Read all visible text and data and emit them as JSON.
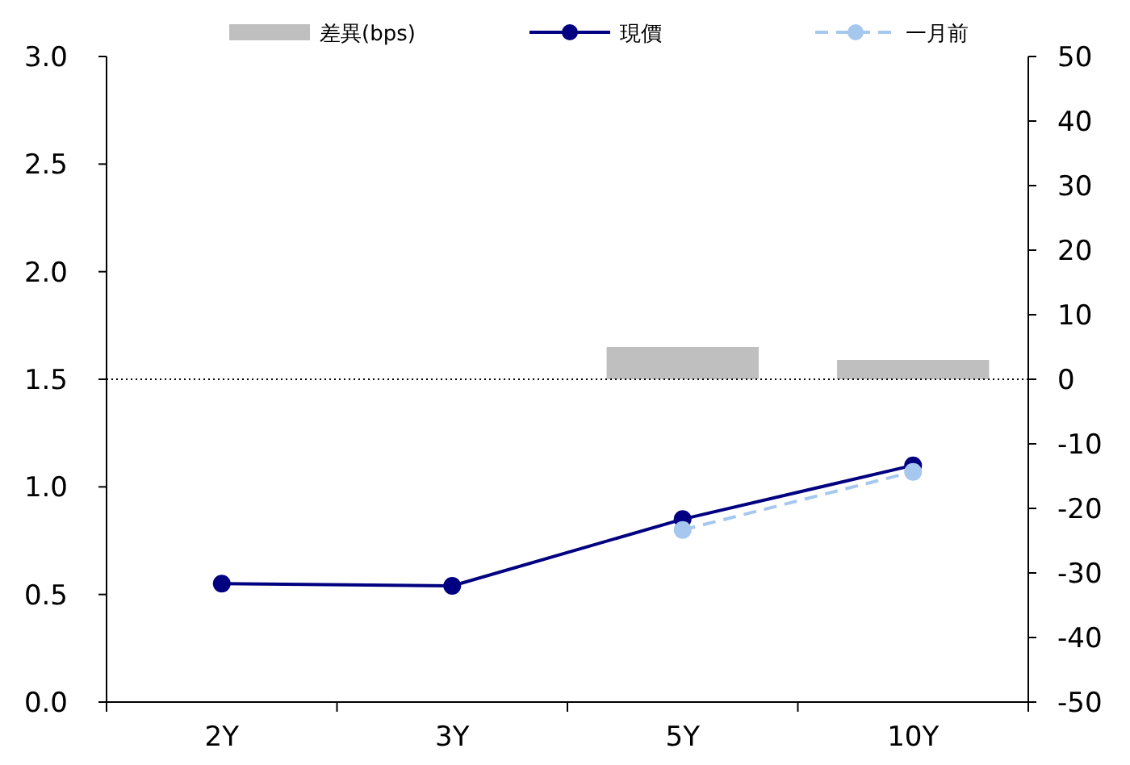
{
  "chart_data": {
    "type": "line",
    "categories": [
      "2Y",
      "3Y",
      "5Y",
      "10Y"
    ],
    "series": [
      {
        "name": "差異(bps)",
        "type": "bar",
        "axis": "y2",
        "color": "#bfbfbf",
        "values": [
          null,
          null,
          5,
          3
        ]
      },
      {
        "name": "現價",
        "color": "#000080",
        "marker": "circle",
        "line_style": "solid",
        "values": [
          0.55,
          0.54,
          0.85,
          1.1
        ]
      },
      {
        "name": "一月前",
        "color": "#a6c8ef",
        "marker": "circle",
        "line_style": "dashed",
        "values": [
          null,
          null,
          0.8,
          1.07
        ]
      }
    ],
    "ylim": [
      0,
      3
    ],
    "yticks": [
      {
        "value": 0,
        "label": "0.0"
      },
      {
        "value": 0.5,
        "label": "0.5"
      },
      {
        "value": 1,
        "label": "1.0"
      },
      {
        "value": 1.5,
        "label": "1.5"
      },
      {
        "value": 2,
        "label": "2.0"
      },
      {
        "value": 2.5,
        "label": "2.5"
      },
      {
        "value": 3,
        "label": "3.0"
      }
    ],
    "y2lim": [
      -50,
      50
    ],
    "y2ticks": [
      -50,
      -40,
      -30,
      -20,
      -10,
      0,
      10,
      20,
      30,
      40,
      50
    ],
    "ref_lines": [
      {
        "axis": "y2",
        "value": 0,
        "color": "#000000",
        "line_style": "dotted"
      }
    ],
    "legend": "top",
    "grid": false
  }
}
